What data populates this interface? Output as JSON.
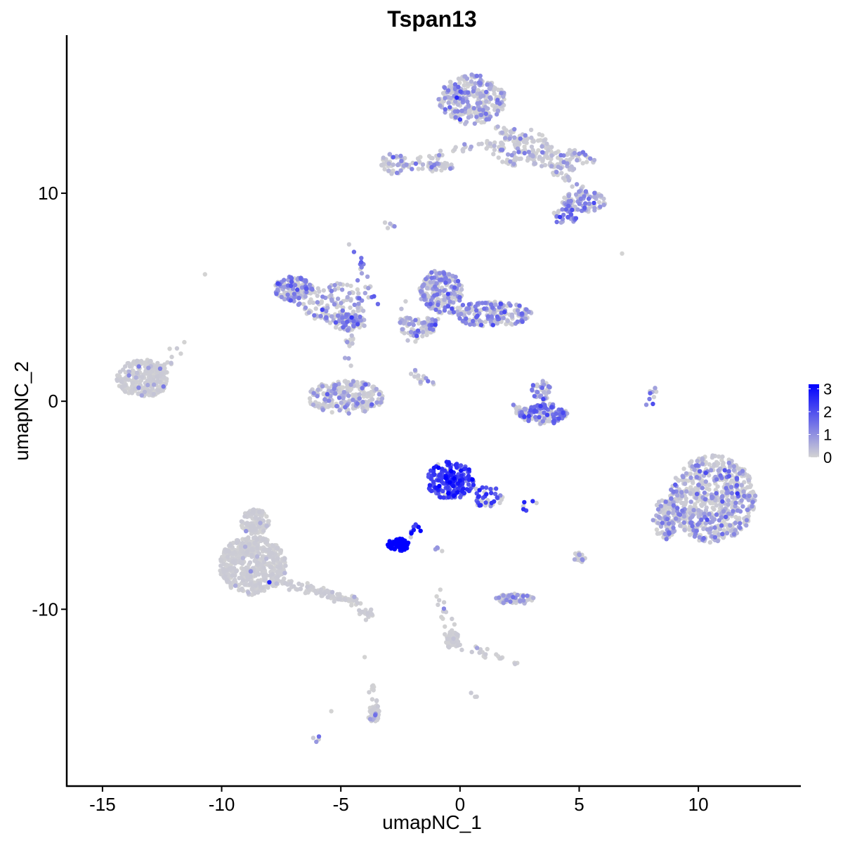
{
  "chart_data": {
    "type": "scatter",
    "title": "Tspan13",
    "xlabel": "umapNC_1",
    "ylabel": "umapNC_2",
    "xlim": [
      -16.5,
      14.3
    ],
    "ylim": [
      -18.5,
      17.6
    ],
    "x_ticks": [
      -15,
      -10,
      -5,
      0,
      5,
      10
    ],
    "x_tick_labels": [
      "-15",
      "-10",
      "-5",
      "0",
      "5",
      "10"
    ],
    "y_ticks": [
      -10,
      0,
      10
    ],
    "y_tick_labels": [
      "-10",
      "0",
      "10"
    ],
    "grid": false,
    "legend": {
      "position": "right",
      "type": "colorbar",
      "title": "",
      "range": [
        0,
        3.2
      ],
      "ticks": [
        0,
        1,
        2,
        3
      ],
      "tick_labels": [
        "0",
        "1",
        "2",
        "3"
      ],
      "low_color": "#d3d3d3",
      "high_color": "#0000ff"
    },
    "clusters": [
      {
        "cx": 0.5,
        "cy": 14.5,
        "rx": 1.4,
        "ry": 1.2,
        "n": 300,
        "expr": 0.7
      },
      {
        "cx": 2.5,
        "cy": 12.2,
        "rx": 1.4,
        "ry": 0.9,
        "n": 120,
        "expr": 0.5
      },
      {
        "cx": 4.6,
        "cy": 11.6,
        "rx": 1.1,
        "ry": 0.5,
        "n": 70,
        "expr": 0.6
      },
      {
        "cx": 5.2,
        "cy": 9.6,
        "rx": 0.9,
        "ry": 0.5,
        "n": 90,
        "expr": 0.8
      },
      {
        "cx": 4.4,
        "cy": 8.9,
        "rx": 0.5,
        "ry": 0.4,
        "n": 30,
        "expr": 1.4
      },
      {
        "cx": -2.8,
        "cy": 11.4,
        "rx": 0.6,
        "ry": 0.5,
        "n": 45,
        "expr": 0.7
      },
      {
        "cx": -1.2,
        "cy": 11.3,
        "rx": 1.0,
        "ry": 0.25,
        "n": 35,
        "expr": 0.5
      },
      {
        "cx": -13.3,
        "cy": 1.1,
        "rx": 1.1,
        "ry": 0.9,
        "n": 260,
        "expr": 0.15
      },
      {
        "cx": -7.0,
        "cy": 5.4,
        "rx": 0.8,
        "ry": 0.6,
        "n": 130,
        "expr": 1.0
      },
      {
        "cx": -5.3,
        "cy": 4.8,
        "rx": 1.5,
        "ry": 0.9,
        "n": 120,
        "expr": 0.8
      },
      {
        "cx": -4.7,
        "cy": 3.8,
        "rx": 0.7,
        "ry": 0.4,
        "n": 70,
        "expr": 1.1
      },
      {
        "cx": -4.8,
        "cy": 0.2,
        "rx": 1.6,
        "ry": 0.8,
        "n": 230,
        "expr": 0.55
      },
      {
        "cx": -0.8,
        "cy": 5.3,
        "rx": 0.9,
        "ry": 1.0,
        "n": 200,
        "expr": 0.9
      },
      {
        "cx": 1.3,
        "cy": 4.2,
        "rx": 1.7,
        "ry": 0.6,
        "n": 190,
        "expr": 0.85
      },
      {
        "cx": -1.8,
        "cy": 3.6,
        "rx": 0.8,
        "ry": 0.5,
        "n": 60,
        "expr": 0.8
      },
      {
        "cx": 3.5,
        "cy": -0.6,
        "rx": 1.0,
        "ry": 0.5,
        "n": 120,
        "expr": 1.3
      },
      {
        "cx": 3.4,
        "cy": 0.5,
        "rx": 0.4,
        "ry": 0.5,
        "n": 40,
        "expr": 1.0
      },
      {
        "cx": 10.6,
        "cy": -4.7,
        "rx": 1.8,
        "ry": 2.1,
        "n": 650,
        "expr": 0.7
      },
      {
        "cx": 8.6,
        "cy": -5.7,
        "rx": 0.5,
        "ry": 1.0,
        "n": 90,
        "expr": 0.7
      },
      {
        "cx": -0.4,
        "cy": -3.8,
        "rx": 1.0,
        "ry": 0.9,
        "n": 180,
        "expr": 2.3
      },
      {
        "cx": 1.1,
        "cy": -4.6,
        "rx": 0.7,
        "ry": 0.5,
        "n": 40,
        "expr": 1.8
      },
      {
        "cx": -2.6,
        "cy": -6.9,
        "rx": 0.45,
        "ry": 0.3,
        "n": 80,
        "expr": 3.2
      },
      {
        "cx": -8.7,
        "cy": -7.9,
        "rx": 1.4,
        "ry": 1.4,
        "n": 500,
        "expr": 0.05
      },
      {
        "cx": -8.6,
        "cy": -5.8,
        "rx": 0.6,
        "ry": 0.6,
        "n": 110,
        "expr": 0.05
      },
      {
        "cx": 2.3,
        "cy": -9.5,
        "rx": 0.8,
        "ry": 0.25,
        "n": 70,
        "expr": 0.5
      },
      {
        "cx": -0.3,
        "cy": -11.5,
        "rx": 0.3,
        "ry": 0.4,
        "n": 50,
        "expr": 0.1
      },
      {
        "cx": -3.6,
        "cy": -15.0,
        "rx": 0.3,
        "ry": 0.4,
        "n": 40,
        "expr": 0.3
      },
      {
        "cx": 5.0,
        "cy": -7.5,
        "rx": 0.25,
        "ry": 0.25,
        "n": 20,
        "expr": 0.6
      }
    ],
    "trails": [
      {
        "from": [
          1.5,
          13.2
        ],
        "to": [
          3.5,
          11.5
        ],
        "n": 30,
        "expr": 0.5
      },
      {
        "from": [
          3.5,
          11.5
        ],
        "to": [
          5.5,
          9.8
        ],
        "n": 25,
        "expr": 0.6
      },
      {
        "from": [
          -2.5,
          11.4
        ],
        "to": [
          1.5,
          12.6
        ],
        "n": 30,
        "expr": 0.4
      },
      {
        "from": [
          -6.0,
          4.0
        ],
        "to": [
          -3.8,
          3.8
        ],
        "n": 25,
        "expr": 0.6
      },
      {
        "from": [
          -4.7,
          4.0
        ],
        "to": [
          -4.6,
          1.8
        ],
        "n": 20,
        "expr": 0.4
      },
      {
        "from": [
          -4.4,
          7.5
        ],
        "to": [
          -3.7,
          4.8
        ],
        "n": 18,
        "expr": 1.2
      },
      {
        "from": [
          -2.5,
          3.0
        ],
        "to": [
          -2.2,
          5.0
        ],
        "n": 12,
        "expr": 0.7
      },
      {
        "from": [
          -2.3,
          2.5
        ],
        "to": [
          -0.7,
          4.3
        ],
        "n": 20,
        "expr": 0.6
      },
      {
        "from": [
          -2.0,
          1.3
        ],
        "to": [
          -1.0,
          0.7
        ],
        "n": 14,
        "expr": 0.8
      },
      {
        "from": [
          2.1,
          -0.3
        ],
        "to": [
          3.0,
          -0.7
        ],
        "n": 14,
        "expr": 0.7
      },
      {
        "from": [
          -7.8,
          -8.6
        ],
        "to": [
          -4.5,
          -9.6
        ],
        "n": 90,
        "expr": 0.1
      },
      {
        "from": [
          -4.5,
          -9.6
        ],
        "to": [
          -3.7,
          -10.3
        ],
        "n": 25,
        "expr": 0.15
      },
      {
        "from": [
          -0.9,
          -9.2
        ],
        "to": [
          -0.3,
          -11.5
        ],
        "n": 22,
        "expr": 0.1
      },
      {
        "from": [
          0.0,
          -11.8
        ],
        "to": [
          2.6,
          -12.6
        ],
        "n": 20,
        "expr": 0.1
      },
      {
        "from": [
          -3.7,
          -13.7
        ],
        "to": [
          -3.5,
          -15.5
        ],
        "n": 16,
        "expr": 0.2
      },
      {
        "from": [
          -12.5,
          1.5
        ],
        "to": [
          -11.6,
          2.8
        ],
        "n": 10,
        "expr": 0.4
      },
      {
        "from": [
          7.9,
          -0.1
        ],
        "to": [
          8.2,
          0.8
        ],
        "n": 10,
        "expr": 1.1
      },
      {
        "from": [
          -3.1,
          8.4
        ],
        "to": [
          -2.9,
          8.6
        ],
        "n": 5,
        "expr": 0.8
      },
      {
        "from": [
          -2.3,
          -6.5
        ],
        "to": [
          -1.5,
          -5.8
        ],
        "n": 10,
        "expr": 2.5
      },
      {
        "from": [
          2.7,
          -5.1
        ],
        "to": [
          3.0,
          -5.0
        ],
        "n": 6,
        "expr": 2.2
      },
      {
        "from": [
          -1.1,
          -7.0
        ],
        "to": [
          -0.8,
          -7.2
        ],
        "n": 4,
        "expr": 1.5
      },
      {
        "from": [
          -6.2,
          -16.3
        ],
        "to": [
          -5.9,
          -16.1
        ],
        "n": 4,
        "expr": 1.2
      },
      {
        "from": [
          0.6,
          -14.1
        ],
        "to": [
          0.7,
          -14.2
        ],
        "n": 3,
        "expr": 1.0
      }
    ],
    "singletons": [
      {
        "x": -10.7,
        "y": 6.1,
        "v": 0.0
      },
      {
        "x": 6.8,
        "y": 7.1,
        "v": 0.0
      },
      {
        "x": -5.4,
        "y": -14.9,
        "v": 0.0
      },
      {
        "x": -4.0,
        "y": -12.3,
        "v": 0.0
      },
      {
        "x": -8.0,
        "y": -8.7,
        "v": 2.6
      }
    ]
  }
}
